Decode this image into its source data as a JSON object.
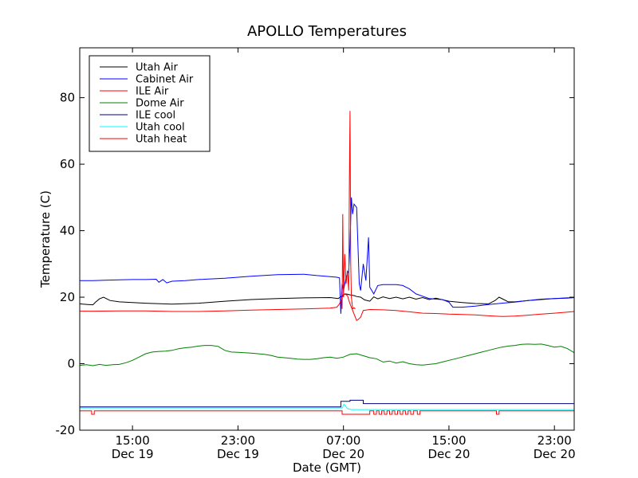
{
  "chart_data": {
    "type": "line",
    "title": "APOLLO Temperatures",
    "xlabel": "Date (GMT)",
    "ylabel": "Temperature (C)",
    "xlim": [
      11,
      48.5
    ],
    "ylim": [
      -20,
      95
    ],
    "grid": false,
    "legend_position": "top-left",
    "yticks": [
      {
        "value": -20,
        "label": "-20"
      },
      {
        "value": 0,
        "label": "0"
      },
      {
        "value": 20,
        "label": "20"
      },
      {
        "value": 40,
        "label": "40"
      },
      {
        "value": 60,
        "label": "60"
      },
      {
        "value": 80,
        "label": "80"
      }
    ],
    "xticks": [
      {
        "value": 15,
        "time": "15:00",
        "date": "Dec 19"
      },
      {
        "value": 23,
        "time": "23:00",
        "date": "Dec 19"
      },
      {
        "value": 31,
        "time": "07:00",
        "date": "Dec 20"
      },
      {
        "value": 39,
        "time": "15:00",
        "date": "Dec 20"
      },
      {
        "value": 47,
        "time": "23:00",
        "date": "Dec 20"
      }
    ],
    "series": [
      {
        "name": "Utah Air",
        "color": "#000000",
        "x": [
          11,
          11.6,
          12,
          12.2,
          12.5,
          12.8,
          13.3,
          14,
          16,
          18,
          20,
          22,
          24,
          26,
          28,
          30,
          30.6,
          30.9,
          31.1,
          31.3,
          31.5,
          31.8,
          32,
          32.3,
          32.6,
          33,
          33.3,
          33.6,
          34,
          34.5,
          35,
          35.5,
          36,
          36.5,
          37,
          37.5,
          38,
          39,
          40,
          41,
          42,
          42.5,
          42.8,
          43.1,
          43.5,
          44,
          45,
          46,
          47,
          48,
          48.5
        ],
        "y": [
          18,
          17.8,
          17.7,
          18.5,
          19.5,
          20,
          19,
          18.6,
          18.2,
          17.9,
          18.2,
          18.8,
          19.3,
          19.6,
          19.8,
          19.9,
          19.6,
          20.4,
          21,
          20.9,
          20.7,
          20.5,
          20.2,
          20,
          19.2,
          18.8,
          20.1,
          19.5,
          20.1,
          19.6,
          20,
          19.5,
          20,
          19.4,
          19.9,
          19.3,
          19.7,
          18.8,
          18.4,
          18.1,
          18,
          19,
          20,
          19.4,
          18.6,
          18.6,
          19,
          19.3,
          19.6,
          19.8,
          19.9
        ]
      },
      {
        "name": "Cabinet Air",
        "color": "#0000ff",
        "x": [
          11,
          12,
          14,
          15,
          16,
          16.8,
          17,
          17.3,
          17.6,
          18,
          19,
          20,
          22,
          24,
          26,
          28,
          29,
          30,
          30.5,
          30.7,
          30.8,
          30.9,
          31,
          31.2,
          31.4,
          31.5,
          31.6,
          31.7,
          31.8,
          32,
          32.2,
          32.3,
          32.5,
          32.7,
          32.9,
          33,
          33.3,
          33.6,
          34,
          35,
          35.5,
          36,
          36.5,
          37,
          37.5,
          38,
          38.5,
          39,
          39.3,
          40,
          41,
          42,
          43,
          44,
          45,
          46,
          47,
          48,
          48.5
        ],
        "y": [
          25,
          25,
          25.2,
          25.3,
          25.3,
          25.4,
          24.5,
          25.3,
          24.3,
          24.8,
          25,
          25.3,
          25.7,
          26.3,
          26.8,
          26.9,
          26.5,
          26.2,
          26,
          25.8,
          15,
          24,
          22,
          26,
          28,
          36,
          50,
          45,
          48,
          47,
          24,
          22,
          30,
          25,
          38,
          23,
          21,
          23.5,
          23.8,
          23.8,
          23.5,
          22.5,
          21,
          20.3,
          19.6,
          19.4,
          19.3,
          18.5,
          17,
          17,
          17.3,
          17.8,
          18.2,
          18.5,
          19,
          19.4,
          19.6,
          19.7,
          19.9
        ]
      },
      {
        "name": "ILE Air",
        "color": "#ff0000",
        "x": [
          11,
          12,
          14,
          16,
          18,
          20,
          22,
          24,
          26,
          28,
          30,
          30.5,
          30.7,
          30.9,
          31.1,
          31.3,
          31.5,
          31.7,
          31.9,
          32,
          32.1,
          32.3,
          32.5,
          33,
          34,
          35,
          36,
          37,
          38,
          39,
          40,
          41,
          42,
          43,
          44,
          45,
          46,
          47,
          48,
          48.5
        ],
        "y": [
          15.8,
          15.8,
          15.9,
          15.9,
          15.7,
          15.7,
          15.9,
          16.1,
          16.3,
          16.5,
          16.7,
          17,
          18,
          20,
          21,
          20.5,
          18,
          16,
          14,
          13,
          13.2,
          14,
          16,
          16.3,
          16.2,
          16,
          15.6,
          15.2,
          15.1,
          14.9,
          14.8,
          14.7,
          14.4,
          14.2,
          14.3,
          14.6,
          14.9,
          15.2,
          15.5,
          15.7
        ]
      },
      {
        "name": "Dome Air",
        "color": "#008000",
        "x": [
          11,
          11.5,
          12,
          12.5,
          13,
          13.5,
          14,
          14.5,
          15,
          15.5,
          16,
          16.5,
          17,
          17.5,
          18,
          18.5,
          19,
          19.5,
          20,
          20.5,
          21,
          21.5,
          22,
          22.5,
          23,
          23.5,
          24,
          24.5,
          25,
          25.5,
          26,
          26.5,
          27,
          27.5,
          28,
          28.5,
          29,
          29.5,
          30,
          30.5,
          31,
          31.5,
          32,
          32.5,
          33,
          33.5,
          34,
          34.5,
          35,
          35.5,
          36,
          36.5,
          37,
          37.5,
          38,
          38.5,
          39,
          39.5,
          40,
          40.5,
          41,
          41.5,
          42,
          42.5,
          43,
          43.5,
          44,
          44.5,
          45,
          45.5,
          46,
          46.5,
          47,
          47.5,
          48,
          48.5
        ],
        "y": [
          -0.5,
          -0.3,
          -0.6,
          -0.2,
          -0.5,
          -0.3,
          -0.2,
          0.3,
          1,
          2,
          3,
          3.5,
          3.7,
          3.8,
          4,
          4.5,
          4.8,
          5,
          5.3,
          5.5,
          5.5,
          5.2,
          4,
          3.5,
          3.4,
          3.3,
          3.2,
          3,
          2.8,
          2.5,
          2,
          1.8,
          1.6,
          1.4,
          1.3,
          1.3,
          1.5,
          1.8,
          2,
          1.6,
          2,
          2.8,
          3,
          2.4,
          1.8,
          1.5,
          0.5,
          0.8,
          0.2,
          0.6,
          0,
          -0.3,
          -0.4,
          -0.2,
          0,
          0.5,
          1,
          1.5,
          2,
          2.5,
          3,
          3.5,
          4,
          4.5,
          5,
          5.3,
          5.5,
          5.8,
          5.9,
          5.8,
          5.9,
          5.5,
          5,
          5.2,
          4.5,
          3.3
        ]
      },
      {
        "name": "ILE cool",
        "color": "#000080",
        "x": [
          11,
          30.8,
          30.8,
          31.5,
          31.5,
          32.5,
          32.5,
          48.5
        ],
        "y": [
          -13,
          -13,
          -11.3,
          -11.3,
          -11,
          -11,
          -12,
          -12
        ]
      },
      {
        "name": "Utah cool",
        "color": "#00ffff",
        "x": [
          11,
          30.9,
          31.05,
          31.2,
          31.3,
          31.6,
          48.5
        ],
        "y": [
          -13.3,
          -13.3,
          -12.2,
          -13,
          -13.5,
          -13.8,
          -13.8
        ]
      },
      {
        "name": "Utah heat",
        "color": "#ff0000",
        "x": [
          11,
          11.9,
          11.9,
          12.1,
          12.1,
          30.9,
          30.9,
          33,
          33,
          33.3,
          33.3,
          33.5,
          33.5,
          33.7,
          33.7,
          33.9,
          33.9,
          34.1,
          34.1,
          34.3,
          34.3,
          34.5,
          34.5,
          34.7,
          34.7,
          34.9,
          34.9,
          35.1,
          35.1,
          35.3,
          35.3,
          35.5,
          35.5,
          35.7,
          35.7,
          35.9,
          35.9,
          36.1,
          36.1,
          36.3,
          36.3,
          36.6,
          36.6,
          36.8,
          36.8,
          42.6,
          42.6,
          42.8,
          42.8,
          48.5
        ],
        "y": [
          -14.2,
          -14.2,
          -15.2,
          -15.2,
          -14.2,
          -14.2,
          -15.2,
          -15.2,
          -14.2,
          -14.2,
          -15.2,
          -15.2,
          -14.2,
          -14.2,
          -15.2,
          -15.2,
          -14.2,
          -14.2,
          -15.2,
          -15.2,
          -14.2,
          -14.2,
          -15.2,
          -15.2,
          -14.2,
          -14.2,
          -15.2,
          -15.2,
          -14.2,
          -14.2,
          -15.2,
          -15.2,
          -14.2,
          -14.2,
          -15.2,
          -15.2,
          -14.2,
          -14.2,
          -15.2,
          -15.2,
          -14.2,
          -14.2,
          -15.2,
          -15.2,
          -14.2,
          -14.2,
          -15.2,
          -15.2,
          -14.2,
          -14.2
        ]
      }
    ],
    "annotations": [
      {
        "type": "spike",
        "series": "Utah heat",
        "x": [
          30.9,
          30.95,
          31.0,
          31.05,
          31.1,
          31.2,
          31.3,
          31.4,
          31.45,
          31.5,
          31.55,
          31.6,
          31.7,
          31.8,
          31.9
        ],
        "y": [
          16.5,
          45,
          20,
          27,
          33,
          24,
          28,
          22,
          55,
          76,
          30,
          20,
          16.5,
          16.8,
          16.5
        ]
      }
    ]
  }
}
